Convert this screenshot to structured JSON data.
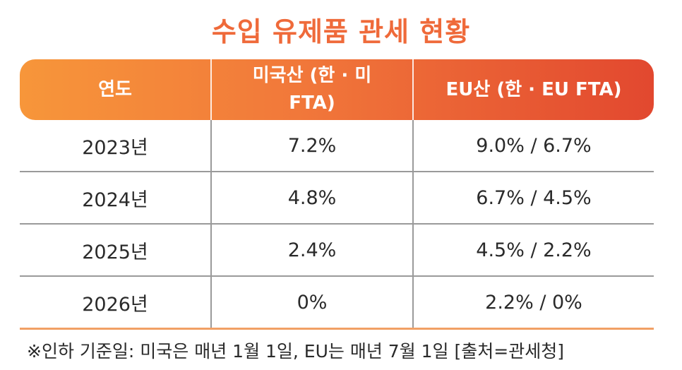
{
  "title": "수입 유제품 관세 현황",
  "table": {
    "headers": [
      "연도",
      "미국산 (한 · 미 FTA)",
      "EU산 (한 · EU FTA)"
    ],
    "header_lines": {
      "us_line1": "미국산 (한 · 미",
      "us_line2": "FTA)"
    },
    "rows": [
      {
        "year": "2023년",
        "us": "7.2%",
        "eu": "9.0% / 6.7%"
      },
      {
        "year": "2024년",
        "us": "4.8%",
        "eu": "6.7% / 4.5%"
      },
      {
        "year": "2025년",
        "us": "2.4%",
        "eu": "4.5% / 2.2%"
      },
      {
        "year": "2026년",
        "us": "0%",
        "eu": "2.2% / 0%"
      }
    ]
  },
  "footnote": "※인하 기준일: 미국은 매년 1월 1일, EU는 매년 7월 1일 [출처=관세청]",
  "colors": {
    "title": "#ef6a3a",
    "header_start": "#f7963a",
    "header_end": "#e2482f"
  }
}
